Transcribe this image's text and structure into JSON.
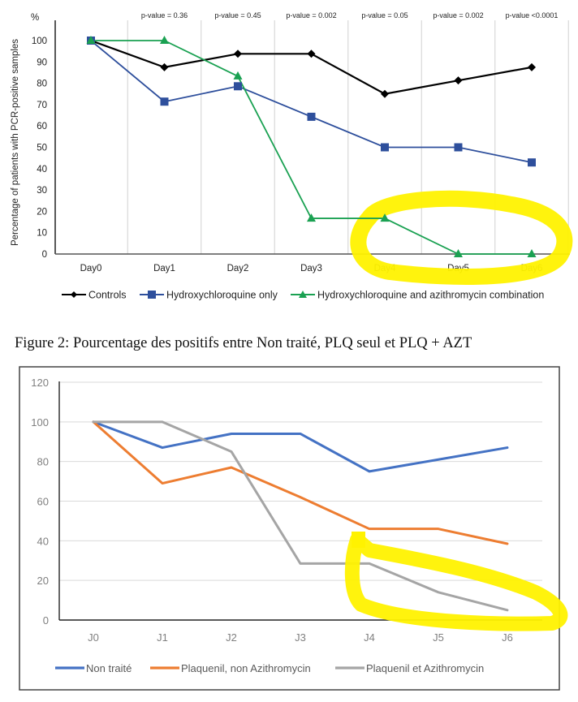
{
  "chart_data": [
    {
      "type": "line",
      "title": "",
      "ylabel": "Percentage of patients with PCR-positive samples",
      "yunit_label": "%",
      "xlabel": "",
      "categories": [
        "Day0",
        "Day1",
        "Day2",
        "Day3",
        "Day4",
        "Day5",
        "Day6"
      ],
      "ylim": [
        0,
        100
      ],
      "yticks": [
        0,
        10,
        20,
        30,
        40,
        50,
        60,
        70,
        80,
        90,
        100
      ],
      "grid": "vertical",
      "annotations": [
        "p-value = 0.36",
        "p-value = 0.45",
        "p-value = 0.002",
        "p-value = 0.05",
        "p-value = 0.002",
        "p-value <0.0001"
      ],
      "legend_position": "bottom",
      "series": [
        {
          "name": "Controls",
          "color": "#000000",
          "marker": "diamond",
          "values": [
            100,
            87.5,
            93.8,
            93.8,
            75,
            81.3,
            87.5
          ]
        },
        {
          "name": "Hydroxychloroquine only",
          "color": "#2e4f9c",
          "marker": "square",
          "values": [
            100,
            71.4,
            78.6,
            64.3,
            50,
            50,
            42.9
          ]
        },
        {
          "name": "Hydroxychloroquine and azithromycin combination",
          "color": "#1aa152",
          "marker": "triangle",
          "values": [
            100,
            100,
            83.3,
            16.7,
            16.7,
            0,
            0
          ]
        }
      ],
      "highlight": {
        "description": "yellow hand-drawn ellipse around Day4–Day6 of the combination series",
        "color": "#fff200",
        "x_range": [
          "Day4",
          "Day6"
        ]
      }
    },
    {
      "type": "line",
      "title": "Figure 2: Pourcentage des positifs entre Non traité, PLQ seul et PLQ + AZT",
      "ylabel": "",
      "xlabel": "",
      "categories": [
        "J0",
        "J1",
        "J2",
        "J3",
        "J4",
        "J5",
        "J6"
      ],
      "ylim": [
        0,
        120
      ],
      "yticks": [
        0,
        20,
        40,
        60,
        80,
        100,
        120
      ],
      "grid": "horizontal",
      "legend_position": "bottom",
      "series": [
        {
          "name": "Non traité",
          "color": "#4472c4",
          "values": [
            100,
            87,
            94,
            94,
            75,
            81,
            87
          ]
        },
        {
          "name": "Plaquenil, non Azithromycin",
          "color": "#ed7d31",
          "values": [
            100,
            69,
            77,
            62,
            46,
            46,
            38.5
          ]
        },
        {
          "name": "Plaquenil et Azithromycin",
          "color": "#a5a5a5",
          "values": [
            100,
            100,
            85,
            28.5,
            28.5,
            14,
            5
          ]
        }
      ],
      "highlight": {
        "description": "yellow hand-drawn ellipse around J4–J6 of the Plaquenil et Azithromycin series",
        "color": "#fff200",
        "x_range": [
          "J4",
          "J6"
        ]
      }
    }
  ]
}
